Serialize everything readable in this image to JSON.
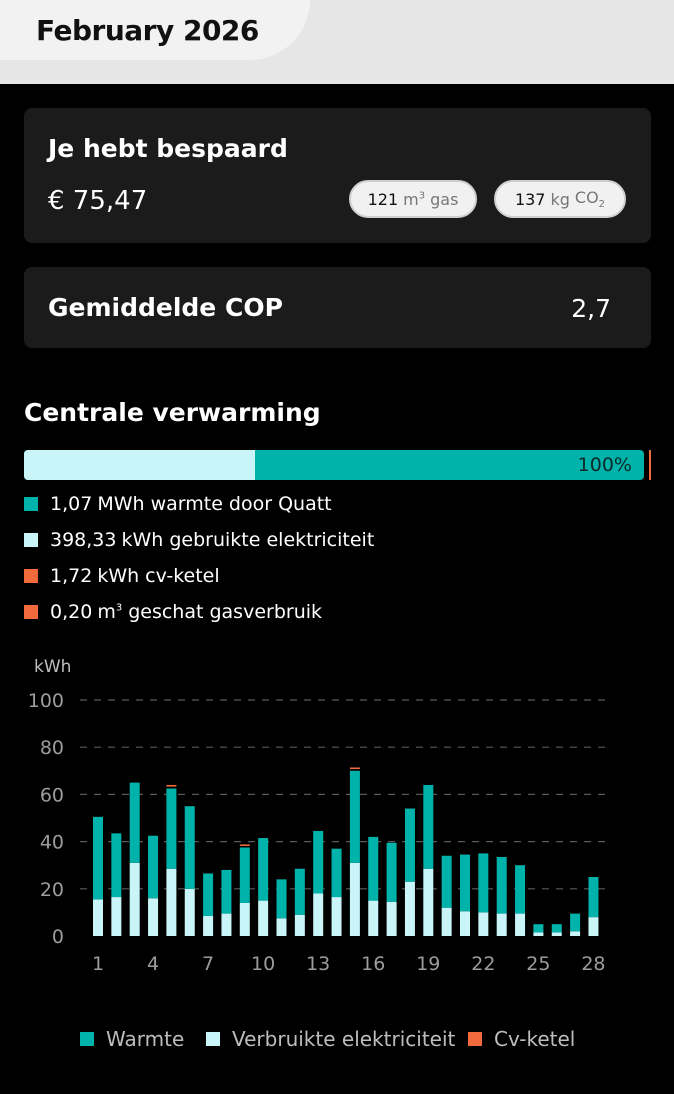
{
  "header": {
    "month": "February 2026"
  },
  "savings": {
    "title": "Je hebt bespaard",
    "amount": "€ 75,47",
    "gas": {
      "value": "121",
      "unit_base": "m",
      "unit_sup": "3",
      "label": "gas"
    },
    "co2": {
      "value": "137",
      "unit": "kg",
      "label_base": "CO",
      "label_sub": "2"
    }
  },
  "cop": {
    "label": "Gemiddelde COP",
    "value": "2,7"
  },
  "heating": {
    "title": "Centrale verwarming",
    "percent_label": "100%",
    "electricity_fraction": 0.372,
    "legend": [
      {
        "value": "1,07",
        "text": "MWh warmte door Quatt",
        "color": "#00b3aa"
      },
      {
        "value": "398,33",
        "text": "kWh gebruikte elektriciteit",
        "color": "#c9f4f8"
      },
      {
        "value": "1,72",
        "text": "kWh cv-ketel",
        "color": "#f06a3b"
      },
      {
        "value": "0,20",
        "unit_base": "m",
        "unit_sup": "3",
        "text": "geschat gasverbruik",
        "color": "#f06a3b"
      }
    ]
  },
  "chart_data": {
    "type": "bar",
    "stacked": true,
    "ylabel": "kWh",
    "ylim": [
      0,
      100
    ],
    "yticks": [
      0,
      20,
      40,
      60,
      80,
      100
    ],
    "xticks": [
      "1",
      "4",
      "7",
      "10",
      "13",
      "16",
      "19",
      "22",
      "25",
      "28"
    ],
    "categories": [
      "1",
      "2",
      "3",
      "4",
      "5",
      "6",
      "7",
      "8",
      "9",
      "10",
      "11",
      "12",
      "13",
      "14",
      "15",
      "16",
      "17",
      "18",
      "19",
      "20",
      "21",
      "22",
      "23",
      "24",
      "25",
      "26",
      "27",
      "28"
    ],
    "series": [
      {
        "name": "Verbruikte elektriciteit",
        "color": "#c9f4f8",
        "values": [
          15.5,
          16.5,
          31,
          16,
          28.5,
          20,
          8.5,
          9.5,
          14,
          15,
          7.5,
          9,
          18,
          16.5,
          31,
          15,
          14.5,
          23,
          28.5,
          12,
          10.5,
          10,
          9.5,
          9.5,
          1.5,
          1.5,
          2,
          8
        ]
      },
      {
        "name": "Warmte",
        "color": "#00b3aa",
        "values": [
          35,
          27,
          34,
          26.5,
          34,
          35,
          18,
          18.5,
          23.5,
          26.5,
          16.5,
          19.5,
          26.5,
          20.5,
          39,
          27,
          25,
          31,
          35.5,
          22,
          24,
          25,
          24,
          20.5,
          3.5,
          3.5,
          7.5,
          17
        ]
      },
      {
        "name": "Cv-ketel",
        "color": "#f06a3b",
        "values": [
          0,
          0,
          0,
          0,
          0.6,
          0,
          0,
          0,
          0.4,
          0,
          0,
          0,
          0,
          0,
          0.5,
          0,
          0,
          0,
          0,
          0,
          0,
          0,
          0,
          0,
          0,
          0,
          0,
          0
        ]
      }
    ],
    "legend": [
      "Warmte",
      "Verbruikte elektriciteit",
      "Cv-ketel"
    ],
    "grid": true
  }
}
